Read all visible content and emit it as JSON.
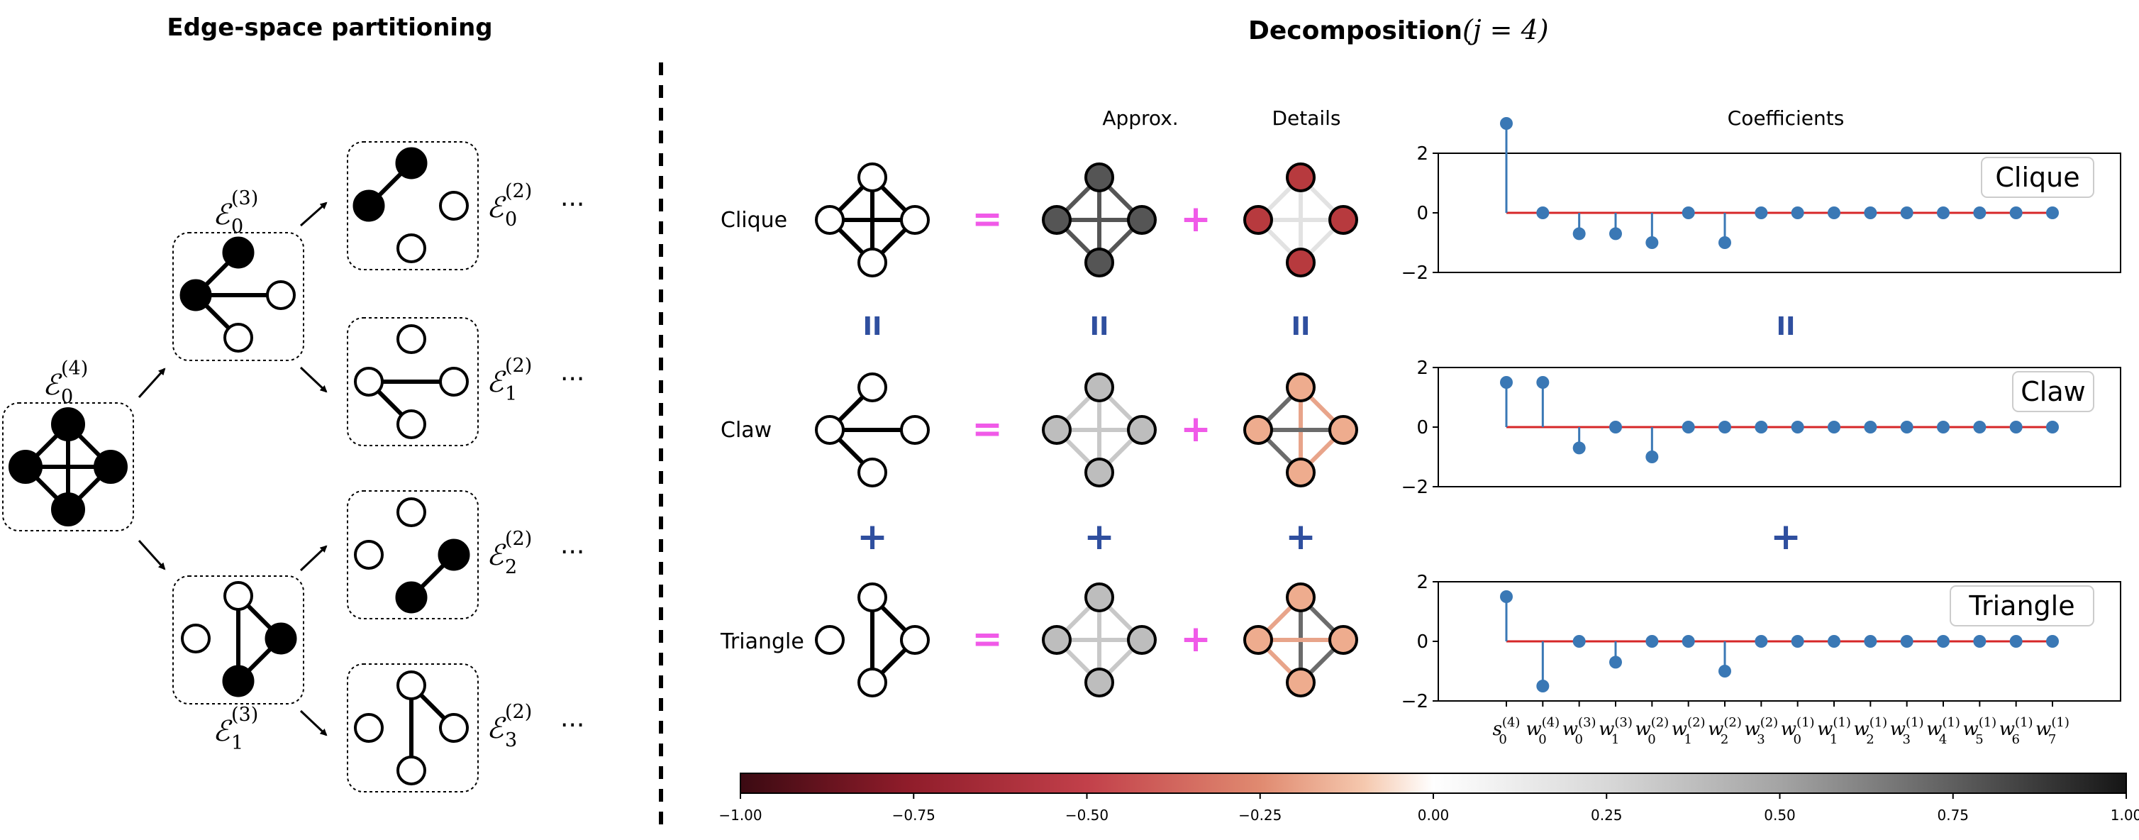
{
  "left_panel": {
    "title": "Edge-space partitioning",
    "label_e4_sup": "(4)",
    "label_e4_sub": "0",
    "label_e3a_sup": "(3)",
    "label_e3a_sub": "0",
    "label_e3b_sup": "(3)",
    "label_e3b_sub": "1",
    "label_e2a_sup": "(2)",
    "label_e2a_sub": "0",
    "label_e2b_sup": "(2)",
    "label_e2b_sub": "1",
    "label_e2c_sup": "(2)",
    "label_e2c_sub": "2",
    "label_e2d_sup": "(2)",
    "label_e2d_sub": "3",
    "script_E": "ℰ",
    "ellipsis": "···"
  },
  "right_panel": {
    "title": "Decomposition",
    "title_math": "(j = 4)",
    "col_approx": "Approx.",
    "col_details": "Details",
    "col_coefficients": "Coefficients",
    "rows": [
      "Clique",
      "Claw",
      "Triangle"
    ],
    "op_equals": "=",
    "op_plus": "+",
    "op_parallel": "II",
    "op_plus_blue": "+"
  },
  "colors": {
    "magenta": "#f05ae8",
    "navy": "#2f4f9f",
    "stem_blue": "#3a78b5",
    "baseline_red": "#d62728"
  },
  "chart_data": [
    {
      "type": "stem",
      "legend": "Clique",
      "ylim": [
        -2,
        2
      ],
      "yticks": [
        "2",
        "0",
        "−2"
      ],
      "xticks": [
        "s_0^(4)",
        "w_0^(4)",
        "w_0^(3)",
        "w_1^(3)",
        "w_0^(2)",
        "w_1^(2)",
        "w_2^(2)",
        "w_3^(2)",
        "w_0^(1)",
        "w_1^(1)",
        "w_2^(1)",
        "w_3^(1)",
        "w_4^(1)",
        "w_5^(1)",
        "w_6^(1)",
        "w_7^(1)"
      ],
      "values": [
        3,
        0,
        -0.7,
        -0.7,
        -1,
        0,
        -1,
        0,
        0,
        0,
        0,
        0,
        0,
        0,
        0,
        0
      ]
    },
    {
      "type": "stem",
      "legend": "Claw",
      "ylim": [
        -2,
        2
      ],
      "yticks": [
        "2",
        "0",
        "−2"
      ],
      "values": [
        1.5,
        1.5,
        -0.7,
        0,
        -1,
        0,
        0,
        0,
        0,
        0,
        0,
        0,
        0,
        0,
        0,
        0
      ]
    },
    {
      "type": "stem",
      "legend": "Triangle",
      "ylim": [
        -2,
        2
      ],
      "yticks": [
        "2",
        "0",
        "−2"
      ],
      "values": [
        1.5,
        -1.5,
        0,
        -0.7,
        0,
        0,
        -1,
        0,
        0,
        0,
        0,
        0,
        0,
        0,
        0,
        0
      ]
    }
  ],
  "colorbar": {
    "range": [
      -1,
      1
    ],
    "tick_values": [
      -1,
      -0.75,
      -0.5,
      -0.25,
      0,
      0.25,
      0.5,
      0.75,
      1
    ],
    "tick_labels": [
      "−1.00",
      "−0.75",
      "−0.50",
      "−0.25",
      "0.00",
      "0.25",
      "0.50",
      "0.75",
      "1.00"
    ]
  }
}
